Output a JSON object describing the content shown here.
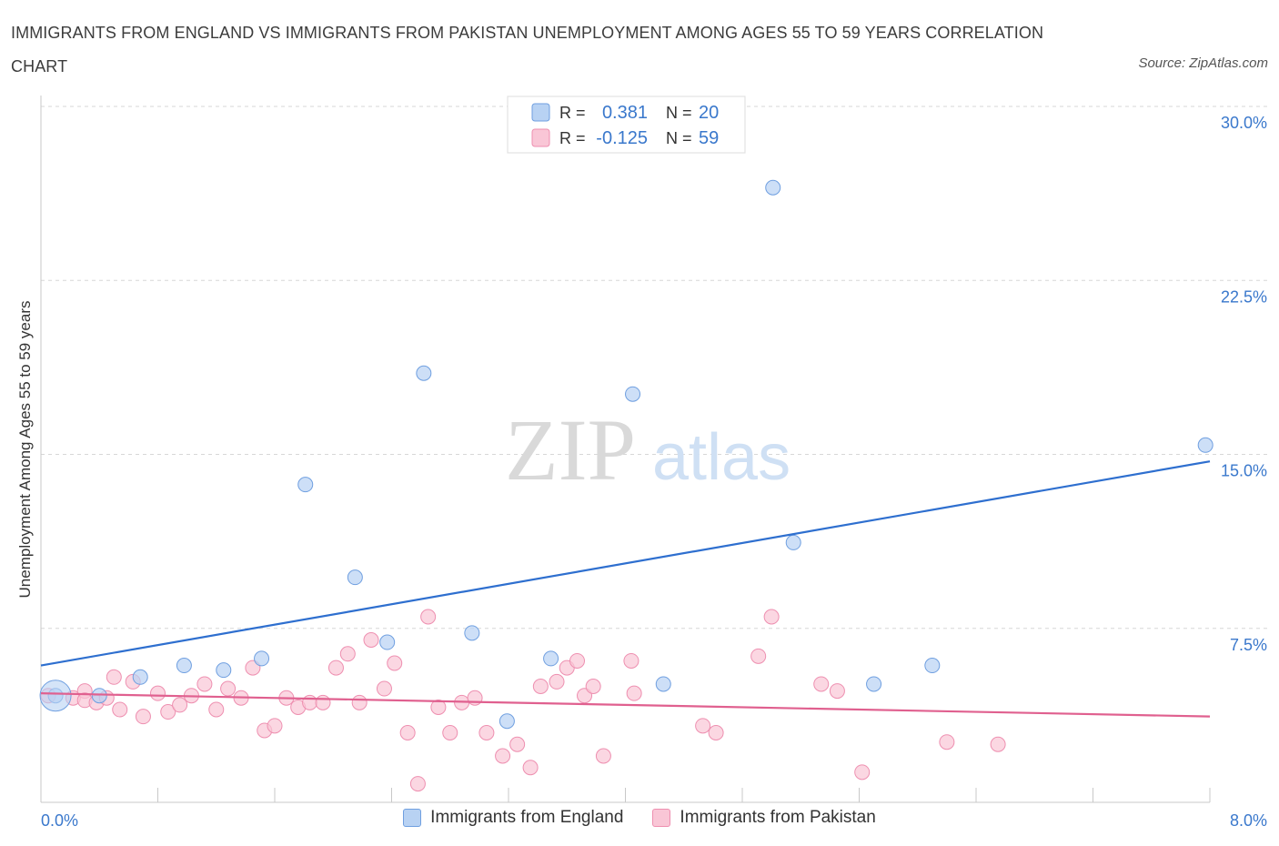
{
  "title": "IMMIGRANTS FROM ENGLAND VS IMMIGRANTS FROM PAKISTAN UNEMPLOYMENT AMONG AGES 55 TO 59 YEARS CORRELATION CHART",
  "source": "Source: ZipAtlas.com",
  "watermark": {
    "zip": "ZIP",
    "atlas": "atlas"
  },
  "legend_box": {
    "rows": [
      {
        "r_label": "R =",
        "r_value": "0.381",
        "n_label": "N =",
        "n_value": "20"
      },
      {
        "r_label": "R =",
        "r_value": "-0.125",
        "n_label": "N =",
        "n_value": "59"
      }
    ]
  },
  "colors": {
    "england_fill": "#b8d2f3",
    "england_stroke": "#6f9fe0",
    "england_line": "#2e6fcf",
    "pakistan_fill": "#f9c6d6",
    "pakistan_stroke": "#ee8fb0",
    "pakistan_line": "#e0608f",
    "tick_label": "#3a78cc",
    "grid": "#d7d7d7"
  },
  "chart_data": {
    "type": "scatter",
    "title": "IMMIGRANTS FROM ENGLAND VS IMMIGRANTS FROM PAKISTAN UNEMPLOYMENT AMONG AGES 55 TO 59 YEARS CORRELATION CHART",
    "xlabel": "",
    "ylabel": "Unemployment Among Ages 55 to 59 years",
    "xlim": [
      0,
      8
    ],
    "ylim": [
      0,
      30
    ],
    "x_tick_labels": [
      "0.0%",
      "8.0%"
    ],
    "y_tick_labels": [
      "7.5%",
      "15.0%",
      "22.5%",
      "30.0%"
    ],
    "y_ticks": [
      7.5,
      15,
      22.5,
      30
    ],
    "grid": true,
    "legend_position": "bottom",
    "series": [
      {
        "name": "Immigrants from England",
        "r": 0.381,
        "n": 20,
        "trend": [
          [
            0,
            5.9
          ],
          [
            8,
            14.7
          ]
        ],
        "points": [
          [
            0.1,
            4.6
          ],
          [
            0.68,
            5.4
          ],
          [
            0.4,
            4.6
          ],
          [
            0.98,
            5.9
          ],
          [
            1.25,
            5.7
          ],
          [
            1.51,
            6.2
          ],
          [
            1.81,
            13.7
          ],
          [
            2.15,
            9.7
          ],
          [
            2.37,
            6.9
          ],
          [
            2.62,
            18.5
          ],
          [
            2.95,
            7.3
          ],
          [
            3.19,
            3.5
          ],
          [
            3.49,
            6.2
          ],
          [
            4.05,
            17.6
          ],
          [
            4.26,
            5.1
          ],
          [
            5.01,
            26.5
          ],
          [
            5.15,
            11.2
          ],
          [
            5.7,
            5.1
          ],
          [
            6.1,
            5.9
          ],
          [
            7.97,
            15.4
          ]
        ]
      },
      {
        "name": "Immigrants from Pakistan",
        "r": -0.125,
        "n": 59,
        "trend": [
          [
            0,
            4.7
          ],
          [
            8,
            3.7
          ]
        ],
        "points": [
          [
            0.05,
            4.6
          ],
          [
            0.22,
            4.5
          ],
          [
            0.3,
            4.8
          ],
          [
            0.3,
            4.4
          ],
          [
            0.38,
            4.3
          ],
          [
            0.45,
            4.5
          ],
          [
            0.5,
            5.4
          ],
          [
            0.54,
            4.0
          ],
          [
            0.63,
            5.2
          ],
          [
            0.7,
            3.7
          ],
          [
            0.8,
            4.7
          ],
          [
            0.87,
            3.9
          ],
          [
            0.95,
            4.2
          ],
          [
            1.03,
            4.6
          ],
          [
            1.12,
            5.1
          ],
          [
            1.2,
            4.0
          ],
          [
            1.28,
            4.9
          ],
          [
            1.37,
            4.5
          ],
          [
            1.45,
            5.8
          ],
          [
            1.53,
            3.1
          ],
          [
            1.6,
            3.3
          ],
          [
            1.68,
            4.5
          ],
          [
            1.76,
            4.1
          ],
          [
            1.84,
            4.3
          ],
          [
            1.93,
            4.3
          ],
          [
            2.02,
            5.8
          ],
          [
            2.1,
            6.4
          ],
          [
            2.18,
            4.3
          ],
          [
            2.26,
            7.0
          ],
          [
            2.35,
            4.9
          ],
          [
            2.42,
            6.0
          ],
          [
            2.51,
            3.0
          ],
          [
            2.58,
            0.8
          ],
          [
            2.65,
            8.0
          ],
          [
            2.72,
            4.1
          ],
          [
            2.8,
            3.0
          ],
          [
            2.88,
            4.3
          ],
          [
            2.97,
            4.5
          ],
          [
            3.05,
            3.0
          ],
          [
            3.16,
            2.0
          ],
          [
            3.26,
            2.5
          ],
          [
            3.35,
            1.5
          ],
          [
            3.42,
            5.0
          ],
          [
            3.53,
            5.2
          ],
          [
            3.6,
            5.8
          ],
          [
            3.67,
            6.1
          ],
          [
            3.72,
            4.6
          ],
          [
            3.78,
            5.0
          ],
          [
            3.85,
            2.0
          ],
          [
            4.04,
            6.1
          ],
          [
            4.06,
            4.7
          ],
          [
            4.53,
            3.3
          ],
          [
            4.62,
            3.0
          ],
          [
            4.91,
            6.3
          ],
          [
            5.0,
            8.0
          ],
          [
            5.34,
            5.1
          ],
          [
            5.45,
            4.8
          ],
          [
            5.62,
            1.3
          ],
          [
            6.2,
            2.6
          ],
          [
            6.55,
            2.5
          ]
        ]
      }
    ]
  }
}
